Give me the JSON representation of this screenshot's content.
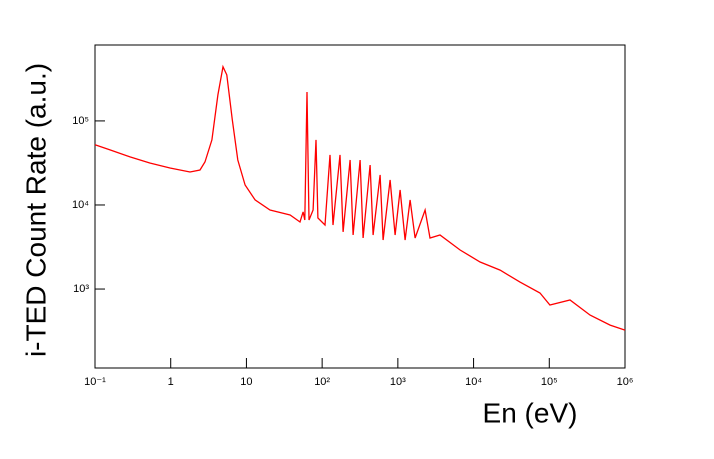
{
  "chart_data": {
    "type": "line",
    "xlabel": "En (eV)",
    "ylabel": "i-TED Count Rate (a.u.)",
    "xscale": "log",
    "yscale": "log",
    "xlim": [
      0.1,
      1000000
    ],
    "ylim": [
      115,
      800000
    ],
    "xticks": [
      {
        "value": 0.1,
        "label": "10⁻¹"
      },
      1,
      10,
      {
        "value": 100,
        "label": "10²"
      },
      {
        "value": 1000,
        "label": "10³"
      },
      {
        "value": 10000,
        "label": "10⁴"
      },
      {
        "value": 100000,
        "label": "10⁵"
      },
      {
        "value": 1000000,
        "label": "10⁶"
      }
    ],
    "yticks": [
      {
        "value": 1000,
        "label": "10³"
      },
      {
        "value": 10000,
        "label": "10⁴"
      },
      {
        "value": 100000,
        "label": "10⁵"
      }
    ],
    "grid": false,
    "series": [
      {
        "color": "#ff0000",
        "x": [
          0.1,
          0.158,
          0.29,
          0.53,
          0.98,
          1.8,
          2.44,
          2.84,
          3.5,
          4.2,
          4.9,
          5.5,
          6.5,
          7.7,
          9.6,
          13,
          20.5,
          37.7,
          51,
          56,
          59,
          63,
          67,
          76,
          83,
          88,
          109,
          127,
          139,
          172,
          189,
          234,
          256,
          317,
          347,
          430,
          471,
          582,
          638,
          789,
          919,
          1070,
          1245,
          1450,
          1690,
          2290,
          2660,
          3600,
          6640,
          12200,
          22400,
          41100,
          75500,
          102000,
          188000,
          346000,
          636000,
          1000000
        ],
        "values": [
          52000,
          45200,
          37300,
          31600,
          27500,
          24700,
          26100,
          32500,
          59400,
          204000,
          440000,
          353000,
          103000,
          34300,
          17300,
          11500,
          8720,
          7600,
          6280,
          8270,
          6630,
          221000,
          6630,
          8720,
          59400,
          7000,
          5780,
          39400,
          5780,
          39400,
          4780,
          34300,
          4400,
          34300,
          4050,
          29900,
          4400,
          22800,
          3830,
          19900,
          4400,
          15100,
          3830,
          11500,
          4050,
          8720,
          4050,
          4400,
          2910,
          2100,
          1680,
          1210,
          896,
          645,
          740,
          490,
          372,
          325
        ]
      }
    ]
  }
}
